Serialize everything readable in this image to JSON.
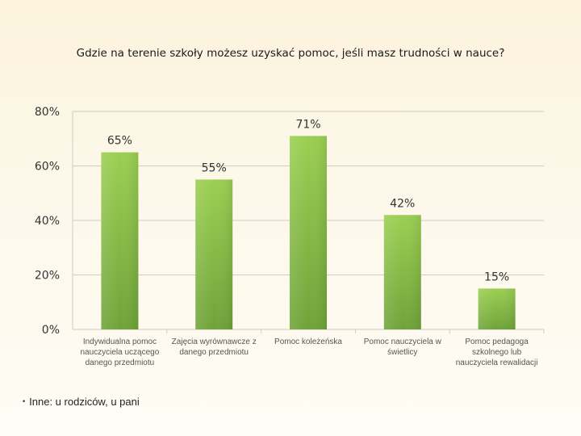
{
  "slide": {
    "title": "Gdzie na terenie szkoły możesz uzyskać pomoc, jeśli masz trudności w nauce?",
    "footnote": "Inne: u rodziców, u pani"
  },
  "colors": {
    "bar_top": "#9bcf52",
    "bar_bottom": "#6fa339",
    "grid": "#d0ccc0",
    "label": "#555555"
  },
  "chart_data": {
    "type": "bar",
    "categories": [
      [
        "Indywidualna pomoc",
        "nauczyciela uczącego",
        "danego przedmiotu"
      ],
      [
        "Zajęcia wyrównawcze z",
        "danego przedmiotu"
      ],
      [
        "Pomoc koleżeńska"
      ],
      [
        "Pomoc nauczyciela w",
        "świetlicy"
      ],
      [
        "Pomoc pedagoga",
        "szkolnego lub",
        "nauczyciela rewalidacji"
      ]
    ],
    "values": [
      65,
      55,
      71,
      42,
      15
    ],
    "data_labels": [
      "65%",
      "55%",
      "71%",
      "42%",
      "15%"
    ],
    "yticks": [
      0,
      20,
      40,
      60,
      80
    ],
    "ytick_labels": [
      "0%",
      "20%",
      "40%",
      "60%",
      "80%"
    ],
    "ylim": [
      0,
      80
    ],
    "grid": true,
    "legend": false
  }
}
